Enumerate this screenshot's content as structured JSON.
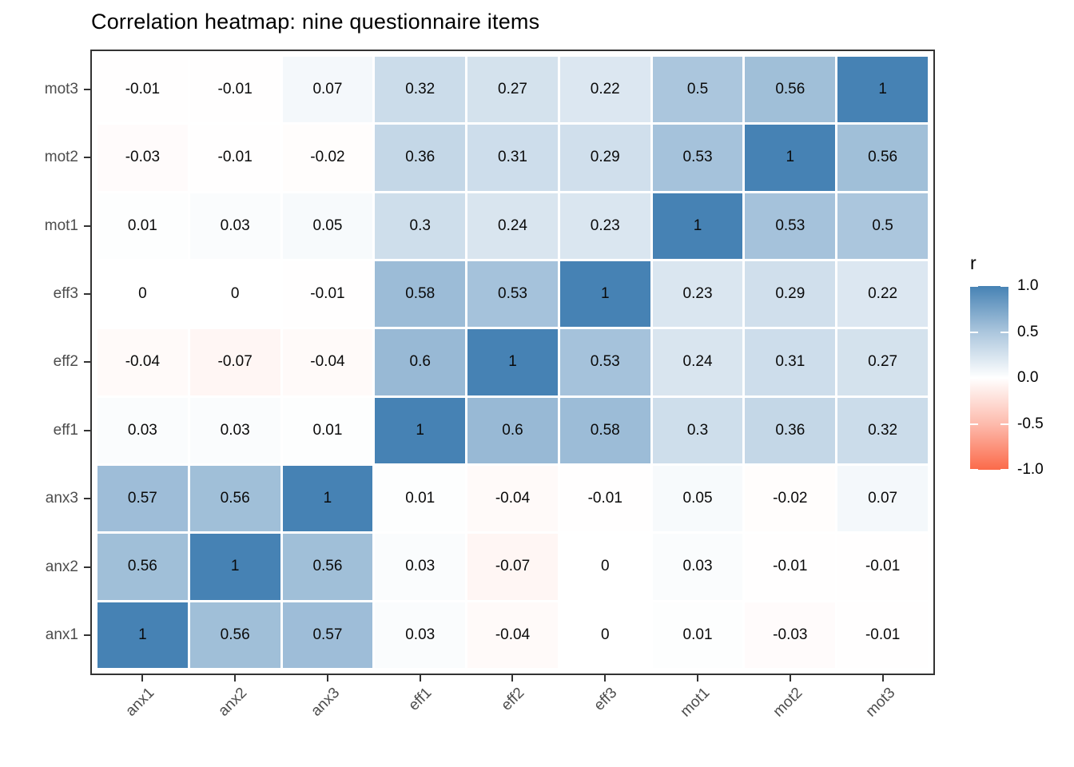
{
  "chart_data": {
    "type": "heatmap",
    "title": "Correlation heatmap: nine questionnaire items",
    "x_categories": [
      "anx1",
      "anx2",
      "anx3",
      "eff1",
      "eff2",
      "eff3",
      "mot1",
      "mot2",
      "mot3"
    ],
    "y_categories_top_to_bottom": [
      "mot3",
      "mot2",
      "mot1",
      "eff3",
      "eff2",
      "eff1",
      "anx3",
      "anx2",
      "anx1"
    ],
    "matrix_rows_top_to_bottom": [
      [
        -0.01,
        -0.01,
        0.07,
        0.32,
        0.27,
        0.22,
        0.5,
        0.56,
        1
      ],
      [
        -0.03,
        -0.01,
        -0.02,
        0.36,
        0.31,
        0.29,
        0.53,
        1,
        0.56
      ],
      [
        0.01,
        0.03,
        0.05,
        0.3,
        0.24,
        0.23,
        1,
        0.53,
        0.5
      ],
      [
        0,
        0,
        -0.01,
        0.58,
        0.53,
        1,
        0.23,
        0.29,
        0.22
      ],
      [
        -0.04,
        -0.07,
        -0.04,
        0.6,
        1,
        0.53,
        0.24,
        0.31,
        0.27
      ],
      [
        0.03,
        0.03,
        0.01,
        1,
        0.6,
        0.58,
        0.3,
        0.36,
        0.32
      ],
      [
        0.57,
        0.56,
        1,
        0.01,
        -0.04,
        -0.01,
        0.05,
        -0.02,
        0.07
      ],
      [
        0.56,
        1,
        0.56,
        0.03,
        -0.07,
        0,
        0.03,
        -0.01,
        -0.01
      ],
      [
        1,
        0.56,
        0.57,
        0.03,
        -0.04,
        0,
        0.01,
        -0.03,
        -0.01
      ]
    ],
    "legend": {
      "title": "r",
      "tick_labels": [
        "1.0",
        "0.5",
        "0.0",
        "-0.5",
        "-1.0"
      ],
      "tick_values": [
        1.0,
        0.5,
        0.0,
        -0.5,
        -1.0
      ],
      "domain": [
        -1,
        1
      ],
      "position": "right"
    },
    "colors": {
      "high": "#4682B4",
      "mid": "#FFFFFF",
      "low": "#FB6A4A"
    },
    "grid": false,
    "panel_border_color": "#333333",
    "axis_text_color": "#4d4d4d"
  }
}
